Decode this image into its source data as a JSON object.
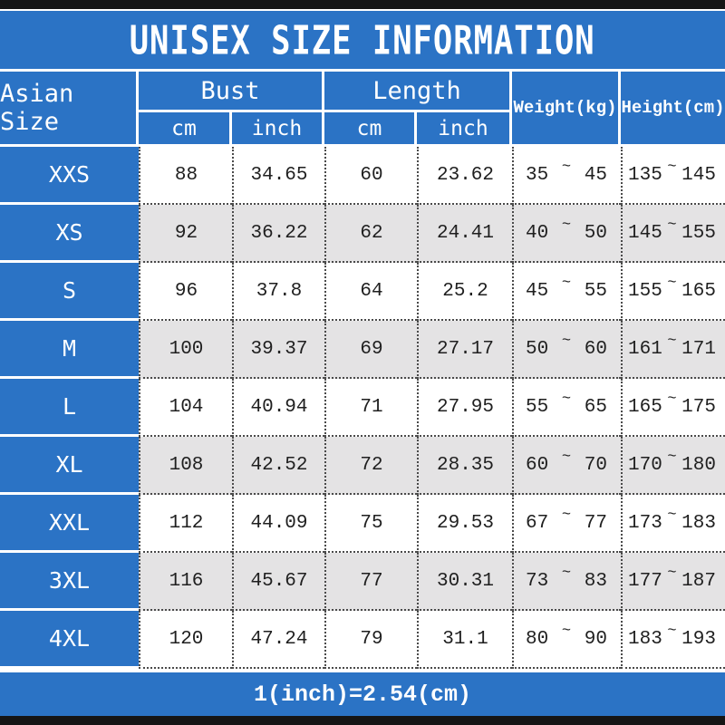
{
  "title": "UNISEX SIZE INFORMATION",
  "footer_note": "1(inch)=2.54(cm)",
  "colors": {
    "accent_blue": "#2b73c5",
    "alt_row_gray": "#e4e3e4",
    "frame_black": "#151515",
    "text_dark": "#1f1f1f"
  },
  "table": {
    "tilde": "~",
    "size_column_header": "Asian Size",
    "group_headers": {
      "bust": "Bust",
      "length": "Length"
    },
    "sub_headers": {
      "bust_cm": "cm",
      "bust_inch": "inch",
      "length_cm": "cm",
      "length_inch": "inch"
    },
    "single_headers": {
      "weight": "Weight(kg)",
      "height": "Height(cm)"
    },
    "rows": [
      {
        "size": "XXS",
        "bust_cm": "88",
        "bust_inch": "34.65",
        "length_cm": "60",
        "length_inch": "23.62",
        "weight_min": "35",
        "weight_max": "45",
        "height_min": "135",
        "height_max": "145"
      },
      {
        "size": "XS",
        "bust_cm": "92",
        "bust_inch": "36.22",
        "length_cm": "62",
        "length_inch": "24.41",
        "weight_min": "40",
        "weight_max": "50",
        "height_min": "145",
        "height_max": "155"
      },
      {
        "size": "S",
        "bust_cm": "96",
        "bust_inch": "37.8",
        "length_cm": "64",
        "length_inch": "25.2",
        "weight_min": "45",
        "weight_max": "55",
        "height_min": "155",
        "height_max": "165"
      },
      {
        "size": "M",
        "bust_cm": "100",
        "bust_inch": "39.37",
        "length_cm": "69",
        "length_inch": "27.17",
        "weight_min": "50",
        "weight_max": "60",
        "height_min": "161",
        "height_max": "171"
      },
      {
        "size": "L",
        "bust_cm": "104",
        "bust_inch": "40.94",
        "length_cm": "71",
        "length_inch": "27.95",
        "weight_min": "55",
        "weight_max": "65",
        "height_min": "165",
        "height_max": "175"
      },
      {
        "size": "XL",
        "bust_cm": "108",
        "bust_inch": "42.52",
        "length_cm": "72",
        "length_inch": "28.35",
        "weight_min": "60",
        "weight_max": "70",
        "height_min": "170",
        "height_max": "180"
      },
      {
        "size": "XXL",
        "bust_cm": "112",
        "bust_inch": "44.09",
        "length_cm": "75",
        "length_inch": "29.53",
        "weight_min": "67",
        "weight_max": "77",
        "height_min": "173",
        "height_max": "183"
      },
      {
        "size": "3XL",
        "bust_cm": "116",
        "bust_inch": "45.67",
        "length_cm": "77",
        "length_inch": "30.31",
        "weight_min": "73",
        "weight_max": "83",
        "height_min": "177",
        "height_max": "187"
      },
      {
        "size": "4XL",
        "bust_cm": "120",
        "bust_inch": "47.24",
        "length_cm": "79",
        "length_inch": "31.1",
        "weight_min": "80",
        "weight_max": "90",
        "height_min": "183",
        "height_max": "193"
      }
    ]
  },
  "chart_data": {
    "type": "table",
    "title": "UNISEX SIZE INFORMATION",
    "columns": [
      "Asian Size",
      "Bust cm",
      "Bust inch",
      "Length cm",
      "Length inch",
      "Weight(kg)",
      "Height(cm)"
    ],
    "rows": [
      [
        "XXS",
        88,
        34.65,
        60,
        23.62,
        "35~45",
        "135~145"
      ],
      [
        "XS",
        92,
        36.22,
        62,
        24.41,
        "40~50",
        "145~155"
      ],
      [
        "S",
        96,
        37.8,
        64,
        25.2,
        "45~55",
        "155~165"
      ],
      [
        "M",
        100,
        39.37,
        69,
        27.17,
        "50~60",
        "161~171"
      ],
      [
        "L",
        104,
        40.94,
        71,
        27.95,
        "55~65",
        "165~175"
      ],
      [
        "XL",
        108,
        42.52,
        72,
        28.35,
        "60~70",
        "170~180"
      ],
      [
        "XXL",
        112,
        44.09,
        75,
        29.53,
        "67~77",
        "173~183"
      ],
      [
        "3XL",
        116,
        45.67,
        77,
        30.31,
        "73~83",
        "177~187"
      ],
      [
        "4XL",
        120,
        47.24,
        79,
        31.1,
        "80~90",
        "183~193"
      ]
    ],
    "footnote": "1(inch)=2.54(cm)"
  }
}
